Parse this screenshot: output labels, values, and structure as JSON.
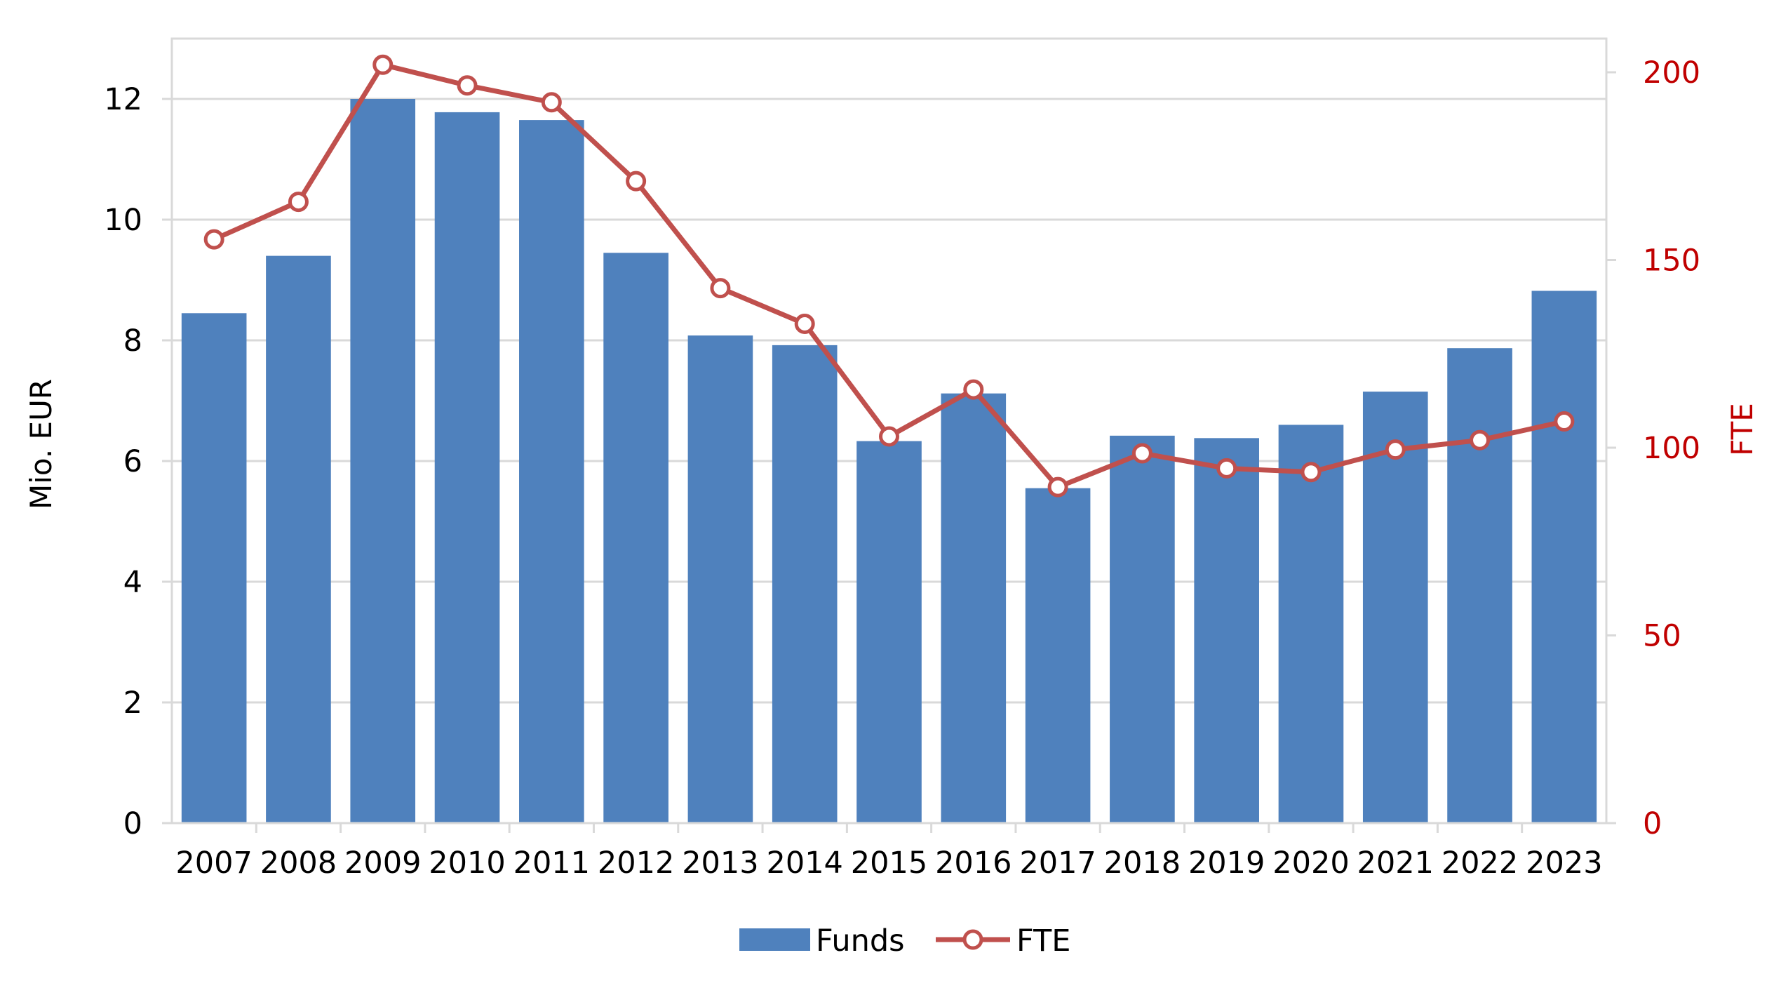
{
  "chart_data": {
    "type": "bar",
    "title": "",
    "categories": [
      "2007",
      "2008",
      "2009",
      "2010",
      "2011",
      "2012",
      "2013",
      "2014",
      "2015",
      "2016",
      "2017",
      "2018",
      "2019",
      "2020",
      "2021",
      "2022",
      "2023"
    ],
    "series": [
      {
        "name": "Funds",
        "type": "bar",
        "axis": "left",
        "values": [
          8.45,
          9.4,
          12.0,
          11.78,
          11.65,
          9.45,
          8.08,
          7.92,
          6.33,
          7.12,
          5.55,
          6.42,
          6.38,
          6.6,
          7.15,
          7.87,
          8.82
        ]
      },
      {
        "name": "FTE",
        "type": "line",
        "axis": "right",
        "values": [
          155.5,
          165.5,
          202,
          196.5,
          192,
          171,
          142.5,
          133,
          103,
          115.5,
          89.5,
          98.5,
          94.5,
          93.5,
          99.5,
          102,
          107
        ]
      }
    ],
    "y_left": {
      "label": "Mio. EUR",
      "min": 0,
      "max": 13,
      "ticks": [
        0,
        2,
        4,
        6,
        8,
        10,
        12
      ]
    },
    "y_right": {
      "label": "FTE",
      "min": 0,
      "max": 200,
      "ticks": [
        0,
        50,
        100,
        150,
        200
      ]
    },
    "grid": true,
    "legend": "bottom-center",
    "colors": {
      "funds": "#4f81bd",
      "fte": "#c0504d",
      "grid": "#d9d9d9",
      "axis_text": "#000000",
      "right_axis_text": "#c00000"
    }
  }
}
